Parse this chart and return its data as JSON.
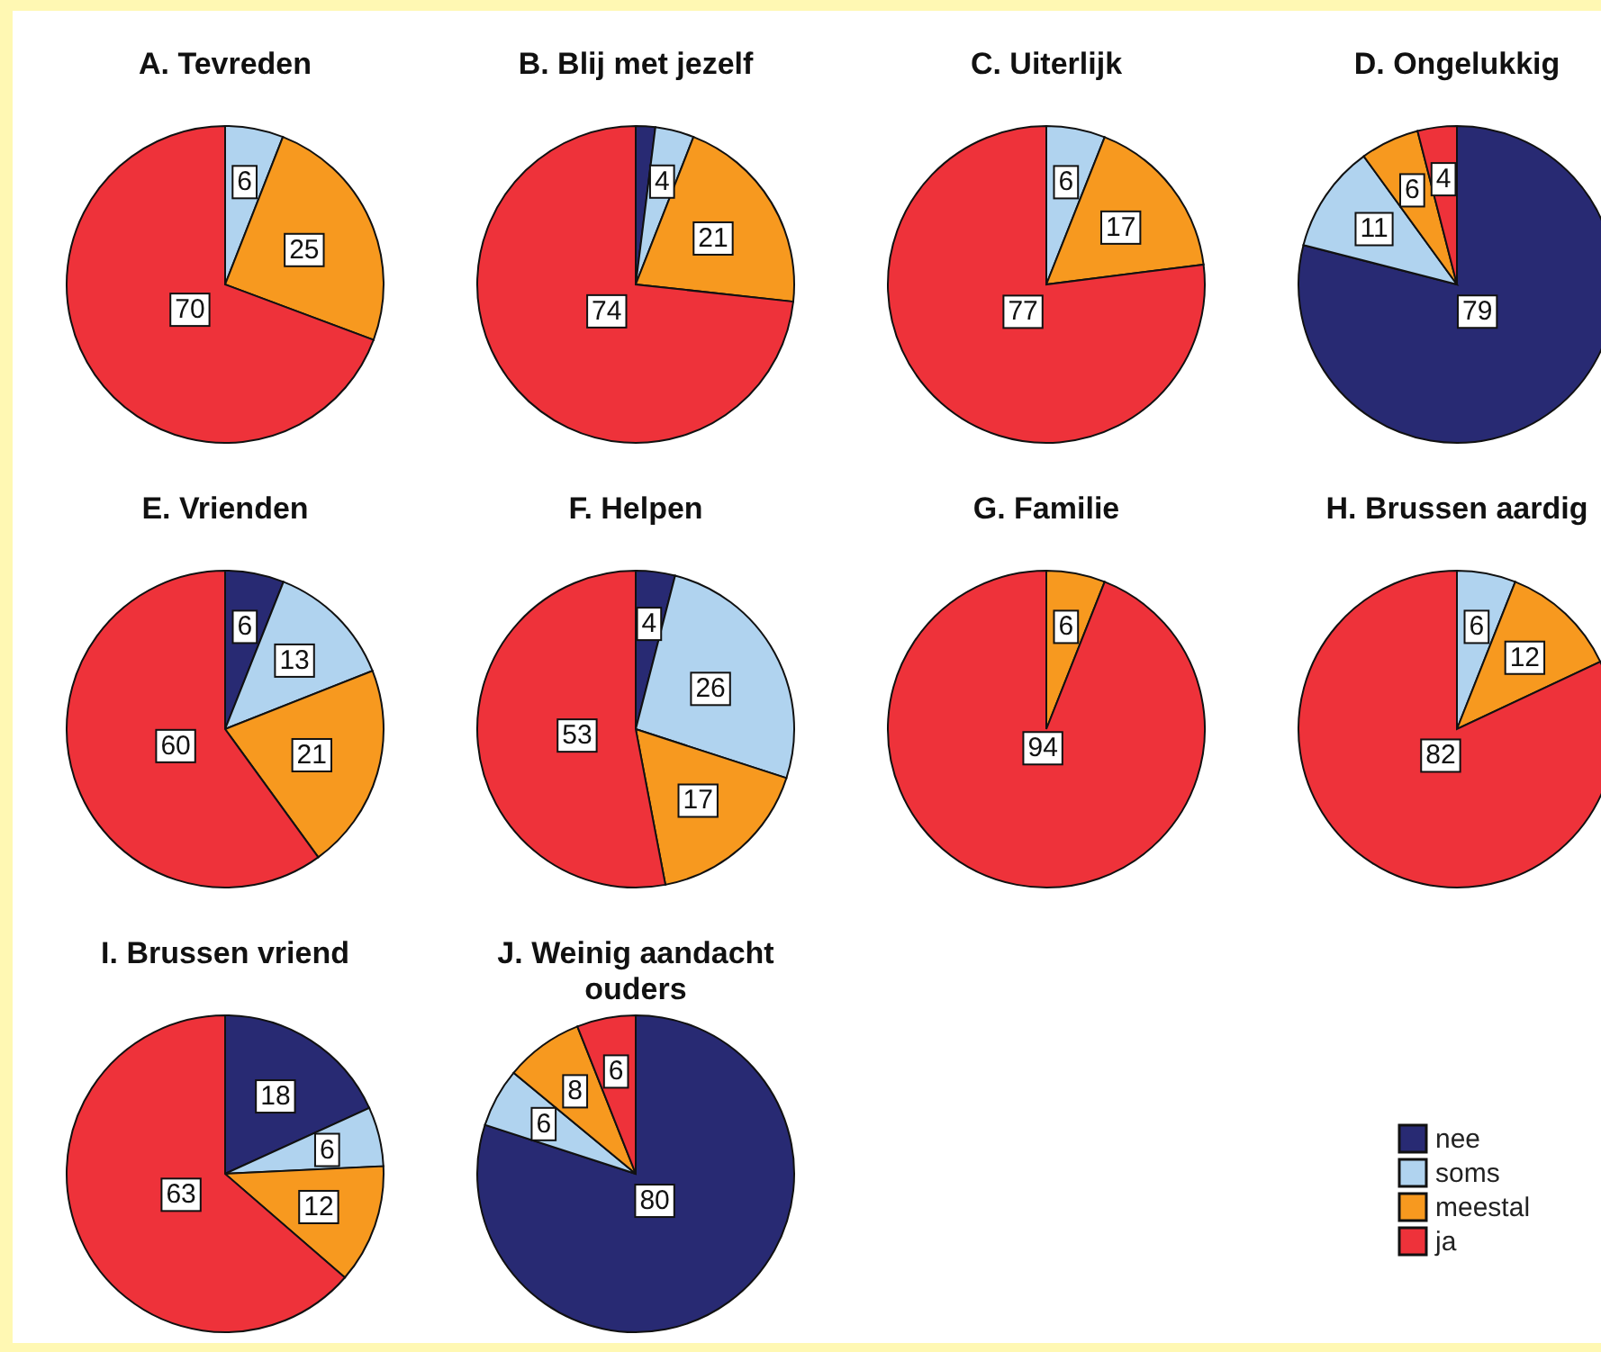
{
  "chart_data": [
    {
      "type": "pie",
      "title": "A. Tevreden",
      "categories": [
        null,
        null,
        null,
        null
      ],
      "values": [
        null,
        6,
        25,
        70
      ],
      "colors": [
        "#282a73",
        "#b0d3ef",
        "#f7991f",
        "#ee323a"
      ],
      "data_labels": true
    },
    {
      "type": "pie",
      "title": "B. Blij met jezelf",
      "categories": [
        null,
        null,
        null,
        null
      ],
      "values": [
        2,
        4,
        21,
        74
      ],
      "colors": [
        "#282a73",
        "#b0d3ef",
        "#f7991f",
        "#ee323a"
      ],
      "value_labels": [
        null,
        "4",
        "21",
        "74"
      ]
    },
    {
      "type": "pie",
      "title": "C. Uiterlijk",
      "categories": [
        null,
        null,
        null,
        null
      ],
      "values": [
        null,
        6,
        17,
        77
      ],
      "colors": [
        "#282a73",
        "#b0d3ef",
        "#f7991f",
        "#ee323a"
      ],
      "data_labels": true
    },
    {
      "type": "pie",
      "title": "D. Ongelukkig",
      "categories": [
        null,
        null,
        null,
        null
      ],
      "values": [
        79,
        11,
        6,
        4
      ],
      "colors": [
        "#282a73",
        "#b0d3ef",
        "#f7991f",
        "#ee323a"
      ],
      "data_labels": true
    },
    {
      "type": "pie",
      "title": "E. Vrienden",
      "categories": [
        null,
        null,
        null,
        null
      ],
      "values": [
        6,
        13,
        21,
        60
      ],
      "colors": [
        "#282a73",
        "#b0d3ef",
        "#f7991f",
        "#ee323a"
      ],
      "data_labels": true
    },
    {
      "type": "pie",
      "title": "F. Helpen",
      "categories": [
        null,
        null,
        null,
        null
      ],
      "values": [
        4,
        26,
        17,
        53
      ],
      "colors": [
        "#282a73",
        "#b0d3ef",
        "#f7991f",
        "#ee323a"
      ],
      "data_labels": true
    },
    {
      "type": "pie",
      "title": "G. Familie",
      "categories": [
        null,
        null,
        null,
        null
      ],
      "values": [
        null,
        null,
        6,
        94
      ],
      "colors": [
        "#282a73",
        "#b0d3ef",
        "#f7991f",
        "#ee323a"
      ],
      "data_labels": true
    },
    {
      "type": "pie",
      "title": "H. Brussen aardig",
      "categories": [
        null,
        null,
        null,
        null
      ],
      "values": [
        null,
        6,
        12,
        82
      ],
      "colors": [
        "#282a73",
        "#b0d3ef",
        "#f7991f",
        "#ee323a"
      ],
      "data_labels": true
    },
    {
      "type": "pie",
      "title": "I. Brussen vriend",
      "categories": [
        null,
        null,
        null,
        null
      ],
      "values": [
        18,
        6,
        12,
        63
      ],
      "colors": [
        "#282a73",
        "#b0d3ef",
        "#f7991f",
        "#ee323a"
      ],
      "data_labels": true
    },
    {
      "type": "pie",
      "title": "J. Weinig aandacht ouders",
      "categories": [
        "nee",
        "soms",
        "meestal",
        "ja"
      ],
      "values": [
        80,
        6,
        8,
        6
      ],
      "colors": [
        "#282a73",
        "#b0d3ef",
        "#f7991f",
        "#ee323a"
      ],
      "data_labels": true,
      "legend": "right"
    }
  ]
}
